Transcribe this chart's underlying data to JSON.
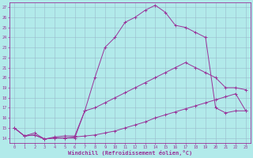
{
  "xlabel": "Windchill (Refroidissement éolien,°C)",
  "bg_color": "#b2eaea",
  "line_color": "#993399",
  "grid_color": "#99bbcc",
  "xlim": [
    -0.5,
    23.5
  ],
  "ylim": [
    13.5,
    27.5
  ],
  "yticks": [
    14,
    15,
    16,
    17,
    18,
    19,
    20,
    21,
    22,
    23,
    24,
    25,
    26,
    27
  ],
  "xticks": [
    0,
    1,
    2,
    3,
    4,
    5,
    6,
    7,
    8,
    9,
    10,
    11,
    12,
    13,
    14,
    15,
    16,
    17,
    18,
    19,
    20,
    21,
    22,
    23
  ],
  "line1_x": [
    0,
    1,
    2,
    3,
    4,
    5,
    6,
    7,
    8,
    9,
    10,
    11,
    12,
    13,
    14,
    15,
    16,
    17,
    18,
    19,
    20,
    21,
    22,
    23
  ],
  "line1_y": [
    15.0,
    14.2,
    14.3,
    13.9,
    14.0,
    14.0,
    14.1,
    14.2,
    14.3,
    14.5,
    14.7,
    15.0,
    15.3,
    15.6,
    16.0,
    16.3,
    16.6,
    16.9,
    17.2,
    17.5,
    17.8,
    18.1,
    18.4,
    16.7
  ],
  "line2_x": [
    0,
    1,
    2,
    3,
    4,
    5,
    6,
    7,
    8,
    9,
    10,
    11,
    12,
    13,
    14,
    15,
    16,
    17,
    18,
    19,
    20,
    21,
    22,
    23
  ],
  "line2_y": [
    15.0,
    14.2,
    14.3,
    13.9,
    14.0,
    14.0,
    14.0,
    16.7,
    17.0,
    17.5,
    18.0,
    18.5,
    19.0,
    19.5,
    20.0,
    20.5,
    21.0,
    21.5,
    21.0,
    20.5,
    20.0,
    19.0,
    19.0,
    18.8
  ],
  "line3_x": [
    0,
    1,
    2,
    3,
    4,
    5,
    6,
    7,
    8,
    9,
    10,
    11,
    12,
    13,
    14,
    15,
    16,
    17,
    18,
    19,
    20,
    21,
    22,
    23
  ],
  "line3_y": [
    15.0,
    14.2,
    14.5,
    13.9,
    14.1,
    14.2,
    14.2,
    16.7,
    20.0,
    23.0,
    24.0,
    25.5,
    26.0,
    26.7,
    27.2,
    26.5,
    25.2,
    25.0,
    24.5,
    24.0,
    17.0,
    16.5,
    16.7,
    16.7
  ]
}
